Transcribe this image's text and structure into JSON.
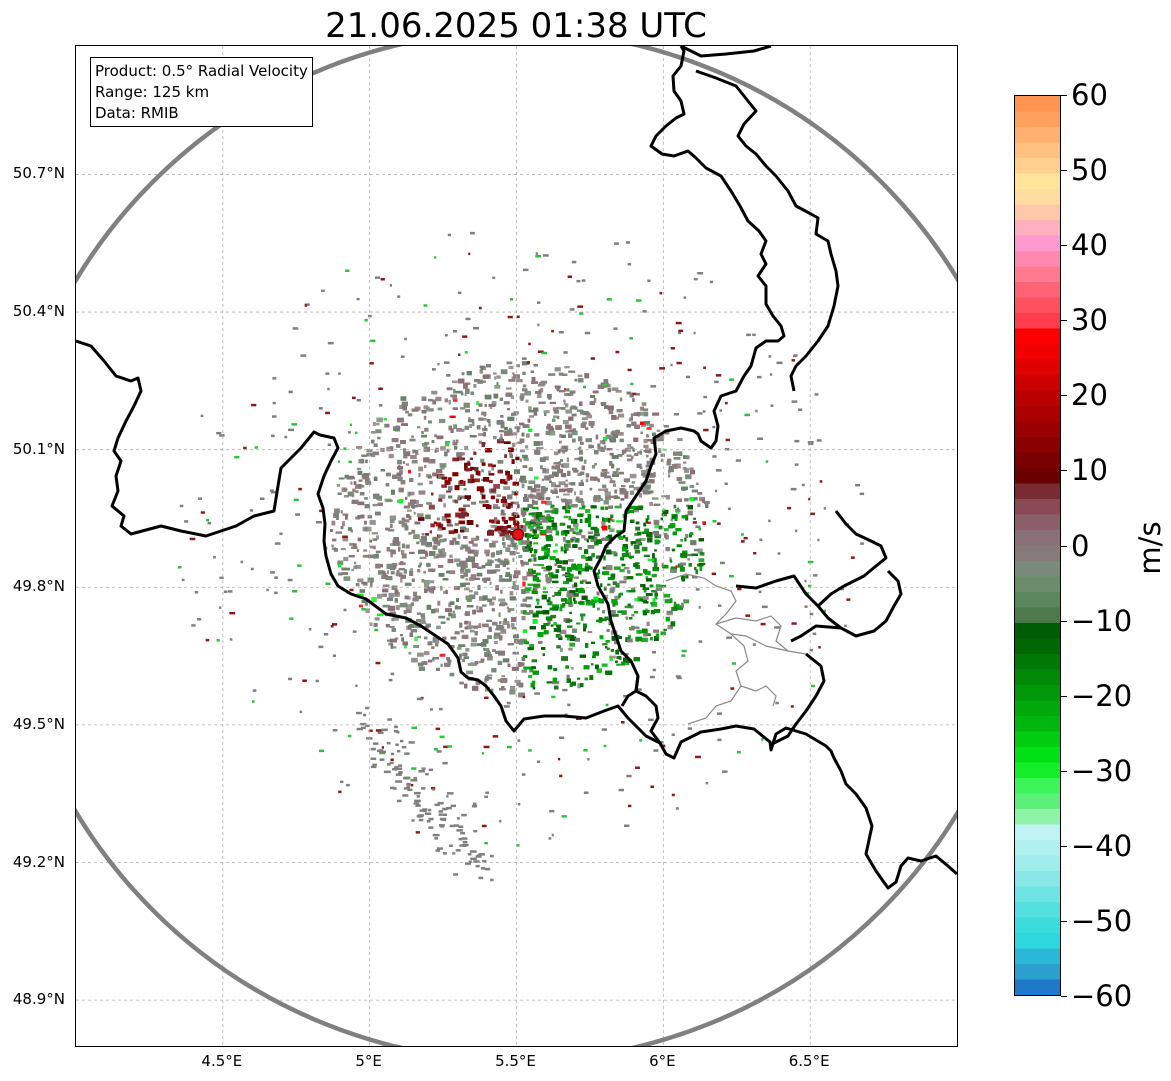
{
  "title": "21.06.2025 01:38 UTC",
  "info_box": {
    "product": "Product: 0.5° Radial Velocity",
    "range": "Range: 125 km",
    "data_source": "Data: RMIB"
  },
  "map": {
    "lon_range": [
      4.0,
      7.0
    ],
    "lat_range": [
      48.8,
      50.98
    ],
    "latitude_labels": [
      {
        "lat": 50.7,
        "label": "50.7°N"
      },
      {
        "lat": 50.4,
        "label": "50.4°N"
      },
      {
        "lat": 50.1,
        "label": "50.1°N"
      },
      {
        "lat": 49.8,
        "label": "49.8°N"
      },
      {
        "lat": 49.5,
        "label": "49.5°N"
      },
      {
        "lat": 49.2,
        "label": "49.2°N"
      },
      {
        "lat": 48.9,
        "label": "48.9°N"
      }
    ],
    "longitude_labels": [
      {
        "lon": 4.5,
        "label": "4.5°E"
      },
      {
        "lon": 5.0,
        "label": "5°E"
      },
      {
        "lon": 5.5,
        "label": "5.5°E"
      },
      {
        "lon": 6.0,
        "label": "6°E"
      },
      {
        "lon": 6.5,
        "label": "6.5°E"
      }
    ],
    "radar_site": {
      "lon": 5.505,
      "lat": 49.915,
      "color": "#e8111a"
    },
    "range_circle_color": "#808080",
    "border_color": "#000000",
    "gridline_color": "#b0b0b0"
  },
  "colorbar": {
    "unit": "m/s",
    "min": -60,
    "max": 60,
    "tick_labels": [
      {
        "value": 60,
        "label": "60"
      },
      {
        "value": 50,
        "label": "50"
      },
      {
        "value": 40,
        "label": "40"
      },
      {
        "value": 30,
        "label": "30"
      },
      {
        "value": 20,
        "label": "20"
      },
      {
        "value": 10,
        "label": "10"
      },
      {
        "value": 0,
        "label": "0"
      },
      {
        "value": -10,
        "label": "−10"
      },
      {
        "value": -20,
        "label": "−20"
      },
      {
        "value": -30,
        "label": "−30"
      },
      {
        "value": -40,
        "label": "−40"
      },
      {
        "value": -50,
        "label": "−50"
      },
      {
        "value": -60,
        "label": "−60"
      }
    ],
    "colors_low_to_high": [
      "#1f78c8",
      "#2a9fd0",
      "#2ab8d6",
      "#2cd8dc",
      "#3bdcdc",
      "#55e0e0",
      "#6fe4e4",
      "#88e8e8",
      "#9eecec",
      "#b0f0f0",
      "#c0f4f4",
      "#8ef5a8",
      "#5cf07a",
      "#3bf55a",
      "#14ee28",
      "#00e014",
      "#00cc10",
      "#00b80d",
      "#00a80a",
      "#009808",
      "#008806",
      "#007804",
      "#006803",
      "#005c02",
      "#4e7a4e",
      "#5c865c",
      "#6b8c6b",
      "#7a8a7a",
      "#877a7a",
      "#8a6e78",
      "#8a5e6a",
      "#8a4a55",
      "#7a2a32",
      "#6a0000",
      "#7a0000",
      "#8a0000",
      "#9a0000",
      "#aa0000",
      "#bb0000",
      "#cc0000",
      "#e00000",
      "#f00000",
      "#ff0000",
      "#ff3d4f",
      "#ff5060",
      "#ff6475",
      "#ff7a90",
      "#ff88b0",
      "#ff9ad0",
      "#ffb0c0",
      "#ffc8a8",
      "#ffdca0",
      "#ffe59a",
      "#ffd090",
      "#ffc080",
      "#ffb070",
      "#ffa05c",
      "#ff9550"
    ]
  }
}
